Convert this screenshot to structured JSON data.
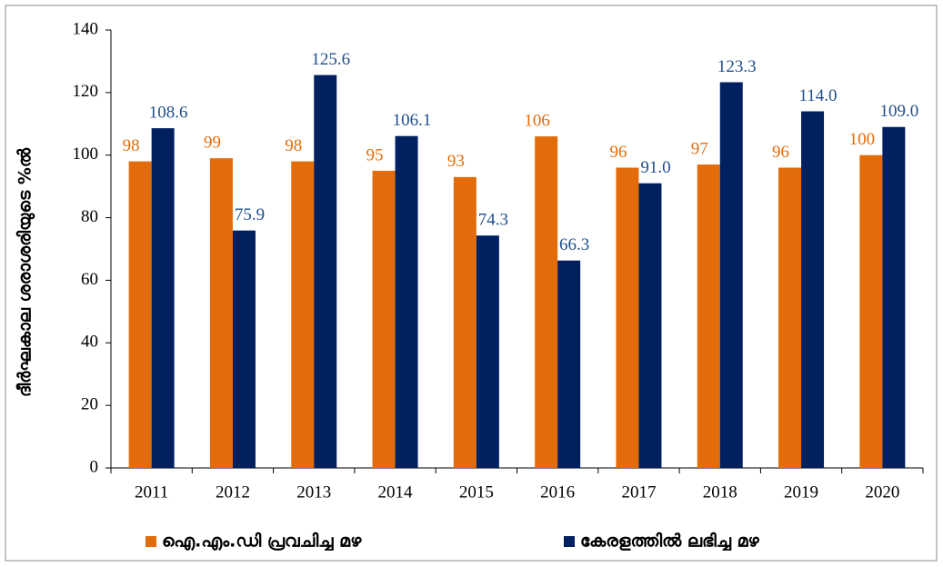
{
  "chart_data": {
    "type": "bar",
    "y_label": "ദീർഘകാല ശരാശരിയുടെ %ൽ",
    "categories": [
      "2011",
      "2012",
      "2013",
      "2014",
      "2015",
      "2016",
      "2017",
      "2018",
      "2019",
      "2020"
    ],
    "series": [
      {
        "name": "ഐ.എം.ഡി പ്രവചിച്ച മഴ",
        "color": "#e36c0a",
        "values": [
          98,
          99,
          98,
          95,
          93,
          106,
          96,
          97,
          96,
          100
        ]
      },
      {
        "name": "കേരളത്തിൽ ലഭിച്ച മഴ",
        "color": "#002060",
        "values": [
          108.6,
          75.9,
          125.6,
          106.1,
          74.3,
          66.3,
          91.0,
          123.3,
          114.0,
          109.0
        ],
        "value_labels": [
          "108.6",
          "75.9",
          "125.6",
          "106.1",
          "74.3",
          "66.3",
          "91.0",
          "123.3",
          "114.0",
          "109.0"
        ]
      }
    ],
    "ylim": [
      0,
      140
    ],
    "yticks": [
      0,
      20,
      40,
      60,
      80,
      100,
      120,
      140
    ],
    "grid": false,
    "legend": "bottom"
  }
}
